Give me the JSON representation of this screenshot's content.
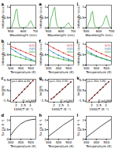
{
  "chart_data": [
    {
      "type": "line",
      "title": "a",
      "x_label": "Wavelength (nm)",
      "y_label": "Intensity (a.u.)",
      "x": [
        500,
        510,
        520,
        530,
        540,
        550,
        560,
        570,
        580,
        590,
        600,
        610,
        620,
        630,
        640,
        650,
        660,
        670,
        680,
        690,
        700
      ],
      "values": [
        0.02,
        0.05,
        0.3,
        0.45,
        0.85,
        0.9,
        0.35,
        0.08,
        0.03,
        0.02,
        0.02,
        0.03,
        0.04,
        0.08,
        0.15,
        0.28,
        0.35,
        0.22,
        0.08,
        0.03,
        0.02
      ],
      "color": "#2ca02c",
      "xlim": [
        500,
        700
      ],
      "xticks": [
        500,
        600,
        700
      ],
      "ylim": [
        0,
        1.1
      ],
      "yticks": [
        0,
        0.5,
        1
      ]
    },
    {
      "type": "line",
      "title": "b",
      "x_label": "Temperature (K)",
      "y_label": "Intensity (a.u.)",
      "x": [
        300,
        350,
        400,
        450,
        500,
        550
      ],
      "legend": "top-right",
      "series": [
        {
          "name": "I525",
          "color": "#d62728",
          "marker": "circle",
          "values": [
            0.9,
            0.8,
            0.7,
            0.6,
            0.5,
            0.4
          ]
        },
        {
          "name": "I545",
          "color": "#1f77b4",
          "marker": "circle",
          "values": [
            0.8,
            0.65,
            0.5,
            0.38,
            0.27,
            0.18
          ]
        },
        {
          "name": "I660",
          "color": "#2ca02c",
          "marker": "circle",
          "values": [
            0.5,
            0.42,
            0.35,
            0.28,
            0.22,
            0.16
          ]
        }
      ],
      "xlim": [
        300,
        550
      ],
      "xticks": [
        300,
        400,
        500
      ],
      "ylim": [
        0,
        1.1
      ],
      "yticks": [
        0,
        0.5,
        1
      ]
    },
    {
      "type": "scatter",
      "title": "c",
      "x_label": "1000/T (K⁻¹)",
      "y_label": "ln(FIR)",
      "x": [
        1.8,
        2.0,
        2.2,
        2.4,
        2.6,
        2.8,
        3.0,
        3.2
      ],
      "series": [
        {
          "type": "scatter",
          "color": "#d62728",
          "values": [
            -1.45,
            -1.22,
            -0.9,
            -0.66,
            -0.34,
            -0.1,
            0.22,
            0.47
          ]
        },
        {
          "type": "line",
          "color": "#000000",
          "values": [
            -1.48,
            -1.2,
            -0.92,
            -0.64,
            -0.36,
            -0.08,
            0.2,
            0.48
          ]
        }
      ],
      "annotations": [
        {
          "text": "y=1.40x-4.00",
          "x": 1.65,
          "y": 0.45
        },
        {
          "text": "R²=0.998",
          "x": 2.45,
          "y": -1.45
        }
      ],
      "xlim": [
        1.6,
        3.4
      ],
      "xticks": [
        2,
        2.5,
        3
      ],
      "ylim": [
        -1.6,
        0.6
      ],
      "yticks": [
        -1.5,
        -0.5,
        0.5
      ]
    },
    {
      "type": "line",
      "title": "d",
      "x_label": "Temperature (K)",
      "y_label": "Sa (% K⁻¹)",
      "x": [
        300,
        350,
        400,
        450,
        500,
        550
      ],
      "values": [
        0.2,
        0.55,
        0.8,
        0.95,
        1.02,
        1.05
      ],
      "color": "#000000",
      "xlim": [
        300,
        550
      ],
      "xticks": [
        300,
        400,
        500
      ],
      "ylim": [
        0,
        1.2
      ],
      "yticks": [
        0,
        0.5,
        1
      ]
    },
    {
      "type": "line",
      "title": "e",
      "x_label": "Wavelength (nm)",
      "y_label": "Intensity (a.u.)",
      "x": [
        500,
        510,
        520,
        530,
        540,
        550,
        560,
        570,
        580,
        590,
        600,
        610,
        620,
        630,
        640,
        650,
        660,
        670,
        680,
        690,
        700
      ],
      "values": [
        0.02,
        0.06,
        0.45,
        0.6,
        0.9,
        1.0,
        0.4,
        0.1,
        0.03,
        0.02,
        0.02,
        0.02,
        0.03,
        0.06,
        0.12,
        0.2,
        0.25,
        0.16,
        0.06,
        0.02,
        0.01
      ],
      "color": "#2ca02c",
      "xlim": [
        500,
        700
      ],
      "xticks": [
        500,
        600,
        700
      ],
      "ylim": [
        0,
        1.1
      ],
      "yticks": [
        0,
        0.5,
        1
      ]
    },
    {
      "type": "line",
      "title": "f",
      "x_label": "Temperature (K)",
      "y_label": "Intensity (a.u.)",
      "x": [
        300,
        350,
        400,
        450,
        500,
        550
      ],
      "legend": "top-right",
      "series": [
        {
          "name": "I525",
          "color": "#d62728",
          "marker": "circle",
          "values": [
            0.95,
            0.82,
            0.7,
            0.58,
            0.47,
            0.38
          ]
        },
        {
          "name": "I545",
          "color": "#1f77b4",
          "marker": "circle",
          "values": [
            0.75,
            0.6,
            0.47,
            0.36,
            0.27,
            0.2
          ]
        },
        {
          "name": "I660",
          "color": "#2ca02c",
          "marker": "circle",
          "values": [
            0.45,
            0.38,
            0.32,
            0.26,
            0.21,
            0.17
          ]
        }
      ],
      "xlim": [
        300,
        550
      ],
      "xticks": [
        300,
        400,
        500
      ],
      "ylim": [
        0,
        1.1
      ],
      "yticks": [
        0,
        0.5,
        1
      ]
    },
    {
      "type": "scatter",
      "title": "g",
      "x_label": "1000/T (K⁻¹)",
      "y_label": "ln(FIR)",
      "x": [
        1.8,
        2.0,
        2.2,
        2.4,
        2.6,
        2.8,
        3.0,
        3.2
      ],
      "series": [
        {
          "type": "scatter",
          "color": "#d62728",
          "values": [
            -1.3,
            -1.12,
            -0.84,
            -0.64,
            -0.36,
            -0.16,
            0.12,
            0.33
          ]
        },
        {
          "type": "line",
          "color": "#000000",
          "values": [
            -1.34,
            -1.1,
            -0.86,
            -0.62,
            -0.38,
            -0.14,
            0.1,
            0.34
          ]
        }
      ],
      "annotations": [
        {
          "text": "y=1.20x-3.50",
          "x": 1.65,
          "y": 0.45
        },
        {
          "text": "R²=0.997",
          "x": 2.45,
          "y": -1.45
        }
      ],
      "xlim": [
        1.6,
        3.4
      ],
      "xticks": [
        2,
        2.5,
        3
      ],
      "ylim": [
        -1.6,
        0.6
      ],
      "yticks": [
        -1.5,
        -0.5,
        0.5
      ]
    },
    {
      "type": "line",
      "title": "h",
      "x_label": "Temperature (K)",
      "y_label": "Sa (% K⁻¹)",
      "x": [
        300,
        350,
        400,
        450,
        500,
        550
      ],
      "values": [
        0.15,
        0.35,
        0.55,
        0.75,
        0.92,
        1.08
      ],
      "color": "#000000",
      "xlim": [
        300,
        550
      ],
      "xticks": [
        300,
        400,
        500
      ],
      "ylim": [
        0,
        1.2
      ],
      "yticks": [
        0,
        0.5,
        1
      ]
    },
    {
      "type": "line",
      "title": "i",
      "x_label": "Wavelength (nm)",
      "y_label": "Intensity (a.u.)",
      "x": [
        500,
        510,
        520,
        530,
        540,
        550,
        560,
        570,
        580,
        590,
        600,
        610,
        620,
        630,
        640,
        650,
        660,
        670,
        680,
        690,
        700
      ],
      "values": [
        0.02,
        0.04,
        0.25,
        0.35,
        0.7,
        0.8,
        0.3,
        0.07,
        0.03,
        0.02,
        0.03,
        0.05,
        0.08,
        0.15,
        0.3,
        0.5,
        0.6,
        0.4,
        0.15,
        0.05,
        0.02
      ],
      "color": "#2ca02c",
      "xlim": [
        500,
        700
      ],
      "xticks": [
        500,
        600,
        700
      ],
      "ylim": [
        0,
        1.1
      ],
      "yticks": [
        0,
        0.5,
        1
      ]
    },
    {
      "type": "line",
      "title": "j",
      "x_label": "Temperature (K)",
      "y_label": "Intensity (a.u.)",
      "x": [
        300,
        350,
        400,
        450,
        500,
        550
      ],
      "legend": "top-right",
      "series": [
        {
          "name": "I525",
          "color": "#d62728",
          "marker": "circle",
          "values": [
            0.9,
            0.78,
            0.66,
            0.55,
            0.45,
            0.36
          ]
        },
        {
          "name": "I545",
          "color": "#1f77b4",
          "marker": "circle",
          "values": [
            0.7,
            0.56,
            0.44,
            0.34,
            0.26,
            0.19
          ]
        },
        {
          "name": "I660",
          "color": "#2ca02c",
          "marker": "circle",
          "values": [
            0.6,
            0.5,
            0.41,
            0.33,
            0.26,
            0.2
          ]
        }
      ],
      "xlim": [
        300,
        550
      ],
      "xticks": [
        300,
        400,
        500
      ],
      "ylim": [
        0,
        1.1
      ],
      "yticks": [
        0,
        0.5,
        1
      ]
    },
    {
      "type": "scatter",
      "title": "k",
      "x_label": "1000/T (K⁻¹)",
      "y_label": "ln(FIR)",
      "x": [
        1.8,
        2.0,
        2.2,
        2.4,
        2.6,
        2.8,
        3.0,
        3.2
      ],
      "series": [
        {
          "type": "scatter",
          "color": "#d62728",
          "values": [
            -1.44,
            -1.22,
            -0.92,
            -0.7,
            -0.4,
            -0.18,
            0.12,
            0.35
          ]
        },
        {
          "type": "line",
          "color": "#000000",
          "values": [
            -1.46,
            -1.2,
            -0.94,
            -0.68,
            -0.42,
            -0.16,
            0.1,
            0.36
          ]
        }
      ],
      "annotations": [
        {
          "text": "y=1.30x-3.80",
          "x": 1.65,
          "y": 0.45
        },
        {
          "text": "R²=0.999",
          "x": 2.45,
          "y": -1.45
        }
      ],
      "xlim": [
        1.6,
        3.4
      ],
      "xticks": [
        2,
        2.5,
        3
      ],
      "ylim": [
        -1.6,
        0.6
      ],
      "yticks": [
        -1.5,
        -0.5,
        0.5
      ]
    },
    {
      "type": "line",
      "title": "l",
      "x_label": "Temperature (K)",
      "y_label": "Sa (% K⁻¹)",
      "x": [
        300,
        350,
        400,
        450,
        500,
        550
      ],
      "values": [
        0.1,
        0.3,
        0.5,
        0.7,
        0.88,
        1.05
      ],
      "color": "#000000",
      "xlim": [
        300,
        550
      ],
      "xticks": [
        300,
        400,
        500
      ],
      "ylim": [
        0,
        1.2
      ],
      "yticks": [
        0,
        0.5,
        1
      ]
    }
  ]
}
